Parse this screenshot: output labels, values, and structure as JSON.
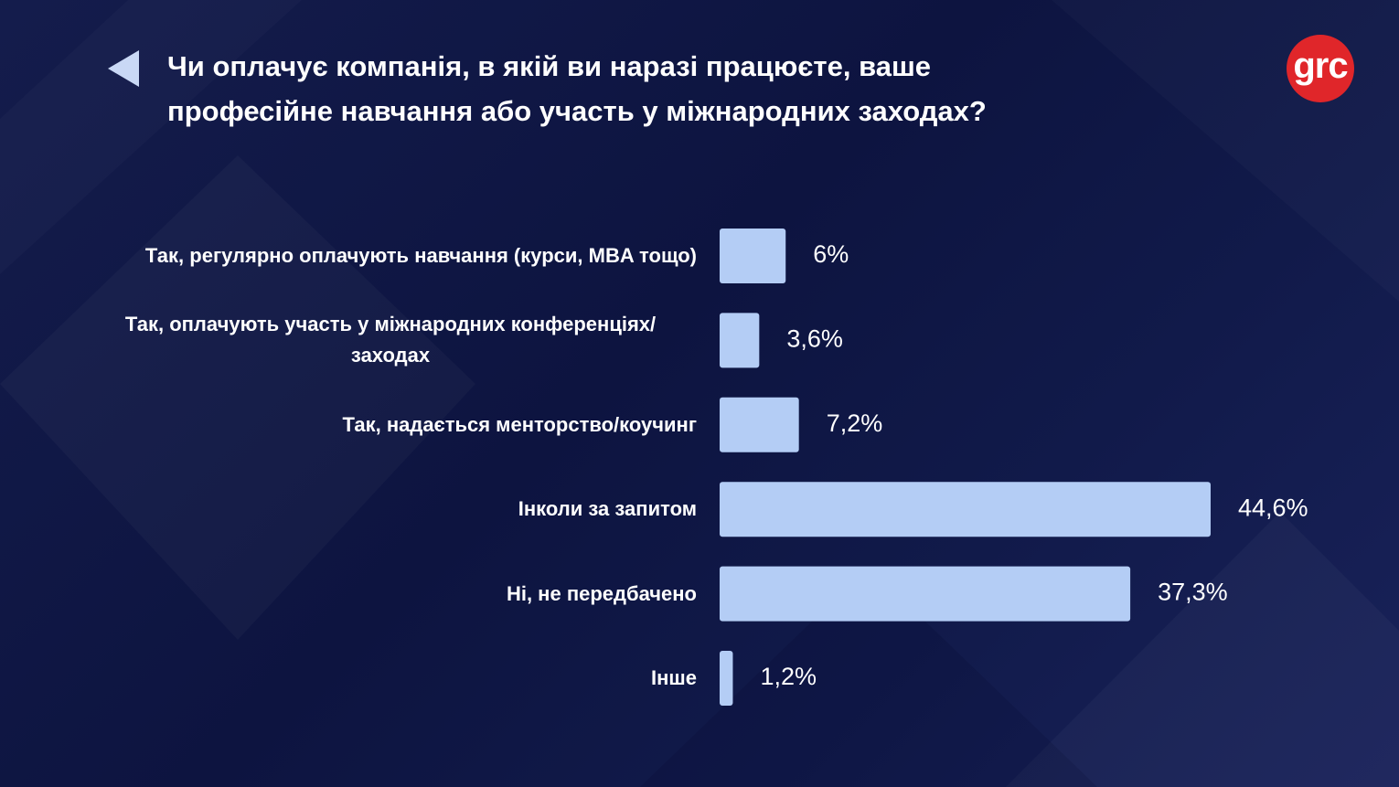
{
  "logo": "grc",
  "chart_data": {
    "type": "bar",
    "orientation": "horizontal",
    "title": "Чи оплачує компанія, в якій ви наразі працюєте, ваше професійне навчання або участь у міжнародних заходах?",
    "categories": [
      "Так, регулярно оплачують навчання (курси, MBA тощо)",
      "Так, оплачують участь у міжнародних конференціях/ заходах",
      "Так, надається менторство/коучинг",
      "Інколи за запитом",
      "Ні, не передбачено",
      "Інше"
    ],
    "values": [
      6,
      3.6,
      7.2,
      44.6,
      37.3,
      1.2
    ],
    "value_labels": [
      "6%",
      "3,6%",
      "7,2%",
      "44,6%",
      "37,3%",
      "1,2%"
    ],
    "color": "#b4cdf5"
  }
}
